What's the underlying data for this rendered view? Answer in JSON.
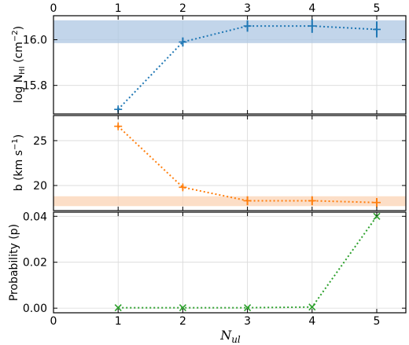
{
  "chart_data": [
    {
      "type": "line",
      "panel": "top",
      "ylabel": "log N",
      "ylabel_sub": "HI",
      "ylabel_unit": "(cm",
      "ylabel_sup": "−2",
      "ylabel_close": ")",
      "xlim": [
        0,
        5.45
      ],
      "ylim": [
        15.675,
        16.105
      ],
      "yticks": [
        15.8,
        16.0
      ],
      "ytick_labels": [
        "15.8",
        "16.0"
      ],
      "band": {
        "ymin": 15.985,
        "ymax": 16.085,
        "color": "#aec7e3"
      },
      "series": [
        {
          "x": [
            1,
            2,
            3,
            4,
            5
          ],
          "values": [
            15.695,
            15.99,
            16.06,
            16.06,
            16.045
          ],
          "err": [
            0.01,
            0.02,
            0.025,
            0.03,
            0.035
          ],
          "color": "#1f77b4",
          "marker": "+"
        }
      ]
    },
    {
      "type": "line",
      "panel": "middle",
      "ylabel": "b (km s",
      "ylabel_sup": "−1",
      "ylabel_close": ")",
      "xlim": [
        0,
        5.45
      ],
      "ylim": [
        17.2,
        27.8
      ],
      "yticks": [
        20,
        25
      ],
      "ytick_labels": [
        "20",
        "25"
      ],
      "band": {
        "ymin": 17.7,
        "ymax": 18.8,
        "color": "#fbd3b4"
      },
      "series": [
        {
          "x": [
            1,
            2,
            3,
            4,
            5
          ],
          "values": [
            26.6,
            19.8,
            18.3,
            18.3,
            18.1
          ],
          "err": [
            0.2,
            0.3,
            0.5,
            0.5,
            0.5
          ],
          "color": "#ff7f0e",
          "marker": "+"
        }
      ]
    },
    {
      "type": "line",
      "panel": "bottom",
      "ylabel": "Probability (p)",
      "xlabel": "N",
      "xlabel_sub": "ul",
      "xlim": [
        0,
        5.45
      ],
      "ylim": [
        -0.002,
        0.0418
      ],
      "yticks": [
        0.0,
        0.02,
        0.04
      ],
      "ytick_labels": [
        "0.00",
        "0.02",
        "0.04"
      ],
      "series": [
        {
          "x": [
            1,
            2,
            3,
            4,
            5
          ],
          "values": [
            0.0002,
            0.0002,
            0.0002,
            0.0005,
            0.04
          ],
          "color": "#2ca02c",
          "marker": "x"
        }
      ]
    }
  ],
  "xticks": [
    0,
    1,
    2,
    3,
    4,
    5
  ],
  "xtick_labels": [
    "0",
    "1",
    "2",
    "3",
    "4",
    "5"
  ]
}
